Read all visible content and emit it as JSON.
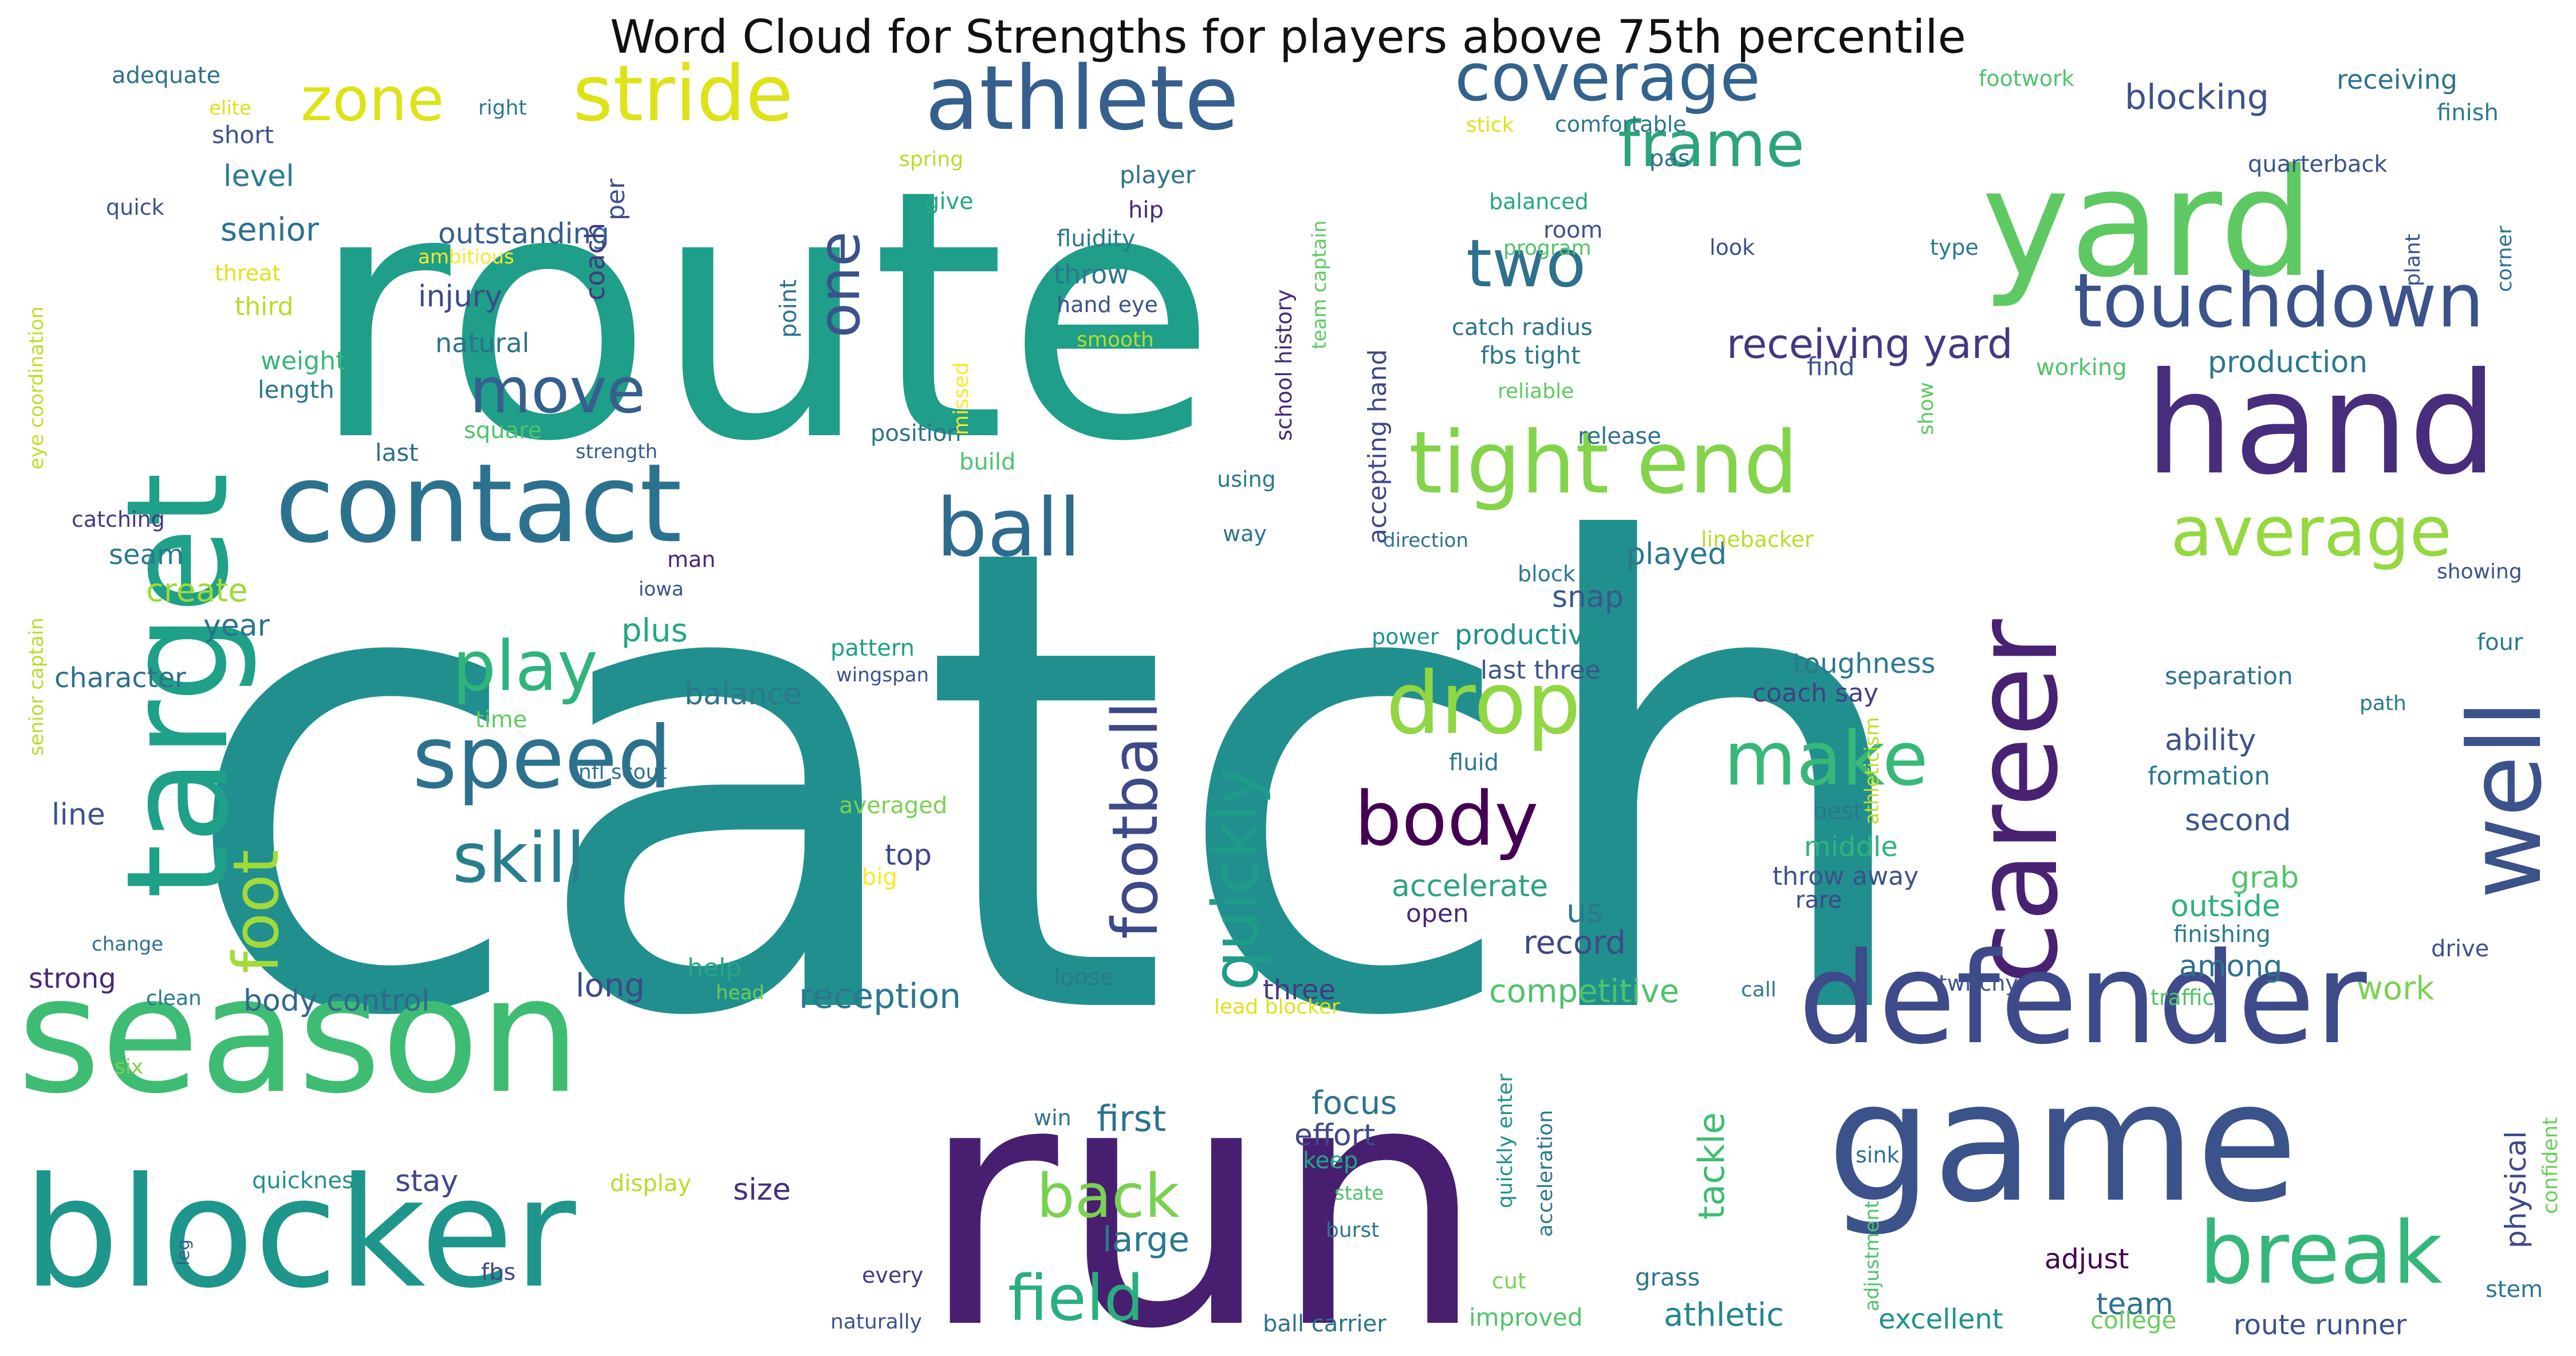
{
  "title": "Word Cloud for Strengths for players above 75th percentile",
  "chart_data": {
    "type": "wordcloud",
    "title": "Word Cloud for Strengths for players above 75th percentile",
    "colormap": "viridis",
    "words": [
      {
        "text": "catch",
        "color": "#218f8d"
      },
      {
        "text": "route",
        "color": "#1f9e89"
      },
      {
        "text": "run",
        "color": "#481f70"
      },
      {
        "text": "season",
        "color": "#3fbc73"
      },
      {
        "text": "target",
        "color": "#1fa088"
      },
      {
        "text": "blocker",
        "color": "#1f968b"
      },
      {
        "text": "game",
        "color": "#3b528b"
      },
      {
        "text": "yard",
        "color": "#5ec962"
      },
      {
        "text": "hand",
        "color": "#472d7b"
      },
      {
        "text": "career",
        "color": "#482173"
      },
      {
        "text": "defender",
        "color": "#3e4a89"
      },
      {
        "text": "contact",
        "color": "#2c728e"
      },
      {
        "text": "athlete",
        "color": "#355f8d"
      },
      {
        "text": "well",
        "color": "#3b528b"
      },
      {
        "text": "touchdown",
        "color": "#3b528b"
      },
      {
        "text": "tight end",
        "color": "#84d44b"
      },
      {
        "text": "stride",
        "color": "#dde318"
      },
      {
        "text": "coverage",
        "color": "#33638d"
      },
      {
        "text": "frame",
        "color": "#2ea37d"
      },
      {
        "text": "break",
        "color": "#35b779"
      },
      {
        "text": "ball",
        "color": "#2f6b8e"
      },
      {
        "text": "drop",
        "color": "#90d743"
      },
      {
        "text": "body",
        "color": "#440154"
      },
      {
        "text": "speed",
        "color": "#2c728e"
      },
      {
        "text": "make",
        "color": "#37b878"
      },
      {
        "text": "football",
        "color": "#3e4989"
      },
      {
        "text": "quickly",
        "color": "#1e9c89"
      },
      {
        "text": "foot",
        "color": "#a2da37"
      },
      {
        "text": "zone",
        "color": "#dde318"
      },
      {
        "text": "average",
        "color": "#95d840"
      },
      {
        "text": "two",
        "color": "#2d718e"
      },
      {
        "text": "one",
        "color": "#3b528b"
      },
      {
        "text": "move",
        "color": "#355f8d"
      },
      {
        "text": "play",
        "color": "#2fb47c"
      },
      {
        "text": "skill",
        "color": "#287d8e"
      },
      {
        "text": "back",
        "color": "#7ad151"
      },
      {
        "text": "field",
        "color": "#29af7f"
      },
      {
        "text": "receiving yard",
        "color": "#453781"
      },
      {
        "text": "reception",
        "color": "#2a788e"
      },
      {
        "text": "blocking",
        "color": "#3b528b"
      },
      {
        "text": "production",
        "color": "#2a788e"
      },
      {
        "text": "athletic",
        "color": "#23888e"
      },
      {
        "text": "large",
        "color": "#2a788e"
      },
      {
        "text": "first",
        "color": "#2c728e"
      },
      {
        "text": "tackle",
        "color": "#3fbc73"
      },
      {
        "text": "competitive",
        "color": "#4ec36b"
      },
      {
        "text": "record",
        "color": "#3e4989"
      },
      {
        "text": "accelerate",
        "color": "#2ea37d"
      },
      {
        "text": "body control",
        "color": "#31688e"
      },
      {
        "text": "character",
        "color": "#2d708e"
      },
      {
        "text": "create",
        "color": "#a0da39"
      },
      {
        "text": "senior",
        "color": "#2c728e"
      },
      {
        "text": "injury",
        "color": "#3e4a89"
      },
      {
        "text": "outstanding",
        "color": "#355f8d"
      },
      {
        "text": "ability",
        "color": "#3b528b"
      },
      {
        "text": "outside",
        "color": "#2db27d"
      },
      {
        "text": "grab",
        "color": "#54c568"
      },
      {
        "text": "second",
        "color": "#39568c"
      },
      {
        "text": "work",
        "color": "#7ad151"
      },
      {
        "text": "among",
        "color": "#2c728e"
      },
      {
        "text": "team",
        "color": "#2c728e"
      },
      {
        "text": "adjust",
        "color": "#440154"
      },
      {
        "text": "physical",
        "color": "#3e4989"
      },
      {
        "text": "excellent",
        "color": "#20928c"
      },
      {
        "text": "college",
        "color": "#6ccd5a"
      },
      {
        "text": "route runner",
        "color": "#3b528b"
      },
      {
        "text": "focus",
        "color": "#2c728e"
      },
      {
        "text": "effort",
        "color": "#3e4989"
      },
      {
        "text": "size",
        "color": "#472d7b"
      },
      {
        "text": "stay",
        "color": "#3e4989"
      },
      {
        "text": "long",
        "color": "#3e4989"
      },
      {
        "text": "balance",
        "color": "#2a788e"
      },
      {
        "text": "plus",
        "color": "#22a884"
      },
      {
        "text": "snap",
        "color": "#38588c"
      },
      {
        "text": "played",
        "color": "#2a788e"
      },
      {
        "text": "productive",
        "color": "#20928c"
      },
      {
        "text": "last three",
        "color": "#39568c"
      },
      {
        "text": "toughness",
        "color": "#2a788e"
      },
      {
        "text": "coach say",
        "color": "#433e85"
      },
      {
        "text": "middle",
        "color": "#2fb47c"
      },
      {
        "text": "throw away",
        "color": "#3b528b"
      },
      {
        "text": "separation",
        "color": "#2c728e"
      },
      {
        "text": "formation",
        "color": "#2a788e"
      },
      {
        "text": "level",
        "color": "#287d8e"
      },
      {
        "text": "quickness",
        "color": "#21918c"
      },
      {
        "text": "strong",
        "color": "#482878"
      },
      {
        "text": "seam",
        "color": "#2a788e"
      },
      {
        "text": "year",
        "color": "#2c728e"
      },
      {
        "text": "line",
        "color": "#3b528b"
      },
      {
        "text": "top",
        "color": "#3e4989"
      },
      {
        "text": "us",
        "color": "#2a788e"
      },
      {
        "text": "open",
        "color": "#482878"
      },
      {
        "text": "three",
        "color": "#443983"
      },
      {
        "text": "help",
        "color": "#22a884"
      },
      {
        "text": "coach",
        "color": "#453781"
      },
      {
        "text": "per",
        "color": "#3b528b"
      },
      {
        "text": "natural",
        "color": "#2c728e"
      },
      {
        "text": "weight",
        "color": "#35b779"
      },
      {
        "text": "length",
        "color": "#2a788e"
      },
      {
        "text": "third",
        "color": "#b5de2b"
      },
      {
        "text": "short",
        "color": "#3b528b"
      },
      {
        "text": "adequate",
        "color": "#2c728e"
      },
      {
        "text": "elite",
        "color": "#dde318"
      },
      {
        "text": "right",
        "color": "#2a788e"
      },
      {
        "text": "quick",
        "color": "#3b528b"
      },
      {
        "text": "threat",
        "color": "#dde318"
      },
      {
        "text": "ambitious",
        "color": "#fde725"
      },
      {
        "text": "eye coordination",
        "color": "#bddf26"
      },
      {
        "text": "senior captain",
        "color": "#b5de2b"
      },
      {
        "text": "catching",
        "color": "#443983"
      },
      {
        "text": "last",
        "color": "#2d708e"
      },
      {
        "text": "square",
        "color": "#4ec36b"
      },
      {
        "text": "strength",
        "color": "#355f8d"
      },
      {
        "text": "position",
        "color": "#2c728e"
      },
      {
        "text": "build",
        "color": "#4ec36b"
      },
      {
        "text": "pattern",
        "color": "#1fa088"
      },
      {
        "text": "wingspan",
        "color": "#3b528b"
      },
      {
        "text": "time",
        "color": "#5ec962"
      },
      {
        "text": "nfl scout",
        "color": "#2c728e"
      },
      {
        "text": "man",
        "color": "#482878"
      },
      {
        "text": "iowa",
        "color": "#3b528b"
      },
      {
        "text": "averaged",
        "color": "#7ad151"
      },
      {
        "text": "big",
        "color": "#fde725"
      },
      {
        "text": "head",
        "color": "#6ccd5a"
      },
      {
        "text": "clean",
        "color": "#2a788e"
      },
      {
        "text": "change",
        "color": "#2c728e"
      },
      {
        "text": "six",
        "color": "#7ad151"
      },
      {
        "text": "leg",
        "color": "#355f8d"
      },
      {
        "text": "fbs",
        "color": "#3e4989"
      },
      {
        "text": "display",
        "color": "#b5de2b"
      },
      {
        "text": "every",
        "color": "#443983"
      },
      {
        "text": "naturally",
        "color": "#3b528b"
      },
      {
        "text": "player",
        "color": "#2c728e"
      },
      {
        "text": "hip",
        "color": "#482878"
      },
      {
        "text": "fluidity",
        "color": "#2a788e"
      },
      {
        "text": "throw",
        "color": "#2a788e"
      },
      {
        "text": "hand eye",
        "color": "#3b528b"
      },
      {
        "text": "smooth",
        "color": "#b5de2b"
      },
      {
        "text": "give",
        "color": "#22a884"
      },
      {
        "text": "spring",
        "color": "#b5de2b"
      },
      {
        "text": "point",
        "color": "#2c728e"
      },
      {
        "text": "missed",
        "color": "#fde725"
      },
      {
        "text": "school history",
        "color": "#482878"
      },
      {
        "text": "team captain",
        "color": "#5ec962"
      },
      {
        "text": "accepting hand",
        "color": "#3e4989"
      },
      {
        "text": "catch radius",
        "color": "#2c728e"
      },
      {
        "text": "fbs tight",
        "color": "#2a788e"
      },
      {
        "text": "reliable",
        "color": "#5ec962"
      },
      {
        "text": "program",
        "color": "#4ec36b"
      },
      {
        "text": "balanced",
        "color": "#22a884"
      },
      {
        "text": "room",
        "color": "#3b528b"
      },
      {
        "text": "using",
        "color": "#2a788e"
      },
      {
        "text": "way",
        "color": "#2c728e"
      },
      {
        "text": "direction",
        "color": "#2c728e"
      },
      {
        "text": "block",
        "color": "#2a788e"
      },
      {
        "text": "power",
        "color": "#20928c"
      },
      {
        "text": "loose",
        "color": "#2a788e"
      },
      {
        "text": "lead blocker",
        "color": "#dde318"
      },
      {
        "text": "win",
        "color": "#2c728e"
      },
      {
        "text": "keep",
        "color": "#22a884"
      },
      {
        "text": "quickly enter",
        "color": "#20928c"
      },
      {
        "text": "acceleration",
        "color": "#2a788e"
      },
      {
        "text": "state",
        "color": "#4ec36b"
      },
      {
        "text": "burst",
        "color": "#2a788e"
      },
      {
        "text": "cut",
        "color": "#7ad151"
      },
      {
        "text": "improved",
        "color": "#4ec36b"
      },
      {
        "text": "ball carrier",
        "color": "#2c728e"
      },
      {
        "text": "grass",
        "color": "#2a788e"
      },
      {
        "text": "rare",
        "color": "#3e4989"
      },
      {
        "text": "fluid",
        "color": "#2a788e"
      },
      {
        "text": "find",
        "color": "#3b528b"
      },
      {
        "text": "best",
        "color": "#2a788e"
      },
      {
        "text": "working",
        "color": "#4ec36b"
      },
      {
        "text": "show",
        "color": "#5ec962"
      },
      {
        "text": "release",
        "color": "#2c728e"
      },
      {
        "text": "linebacker",
        "color": "#b5de2b"
      },
      {
        "text": "athleticism",
        "color": "#bddf26"
      },
      {
        "text": "call",
        "color": "#2a788e"
      },
      {
        "text": "twitchy",
        "color": "#3b528b"
      },
      {
        "text": "sink",
        "color": "#2c728e"
      },
      {
        "text": "adjustment",
        "color": "#4ec36b"
      },
      {
        "text": "finishing",
        "color": "#2a788e"
      },
      {
        "text": "traffic",
        "color": "#4ec36b"
      },
      {
        "text": "stem",
        "color": "#2a788e"
      },
      {
        "text": "confident",
        "color": "#6ccd5a"
      },
      {
        "text": "drive",
        "color": "#3b528b"
      },
      {
        "text": "four",
        "color": "#2a788e"
      },
      {
        "text": "path",
        "color": "#2a788e"
      },
      {
        "text": "showing",
        "color": "#3b528b"
      },
      {
        "text": "plant",
        "color": "#3b528b"
      },
      {
        "text": "corner",
        "color": "#2c728e"
      },
      {
        "text": "type",
        "color": "#2a788e"
      },
      {
        "text": "look",
        "color": "#3b528b"
      },
      {
        "text": "finish",
        "color": "#2a788e"
      },
      {
        "text": "receiving",
        "color": "#2c728e"
      },
      {
        "text": "quarterback",
        "color": "#3b528b"
      },
      {
        "text": "footwork",
        "color": "#4ec36b"
      },
      {
        "text": "stick",
        "color": "#dde318"
      },
      {
        "text": "comfortable",
        "color": "#2a788e"
      },
      {
        "text": "pas",
        "color": "#2c728e"
      }
    ]
  }
}
